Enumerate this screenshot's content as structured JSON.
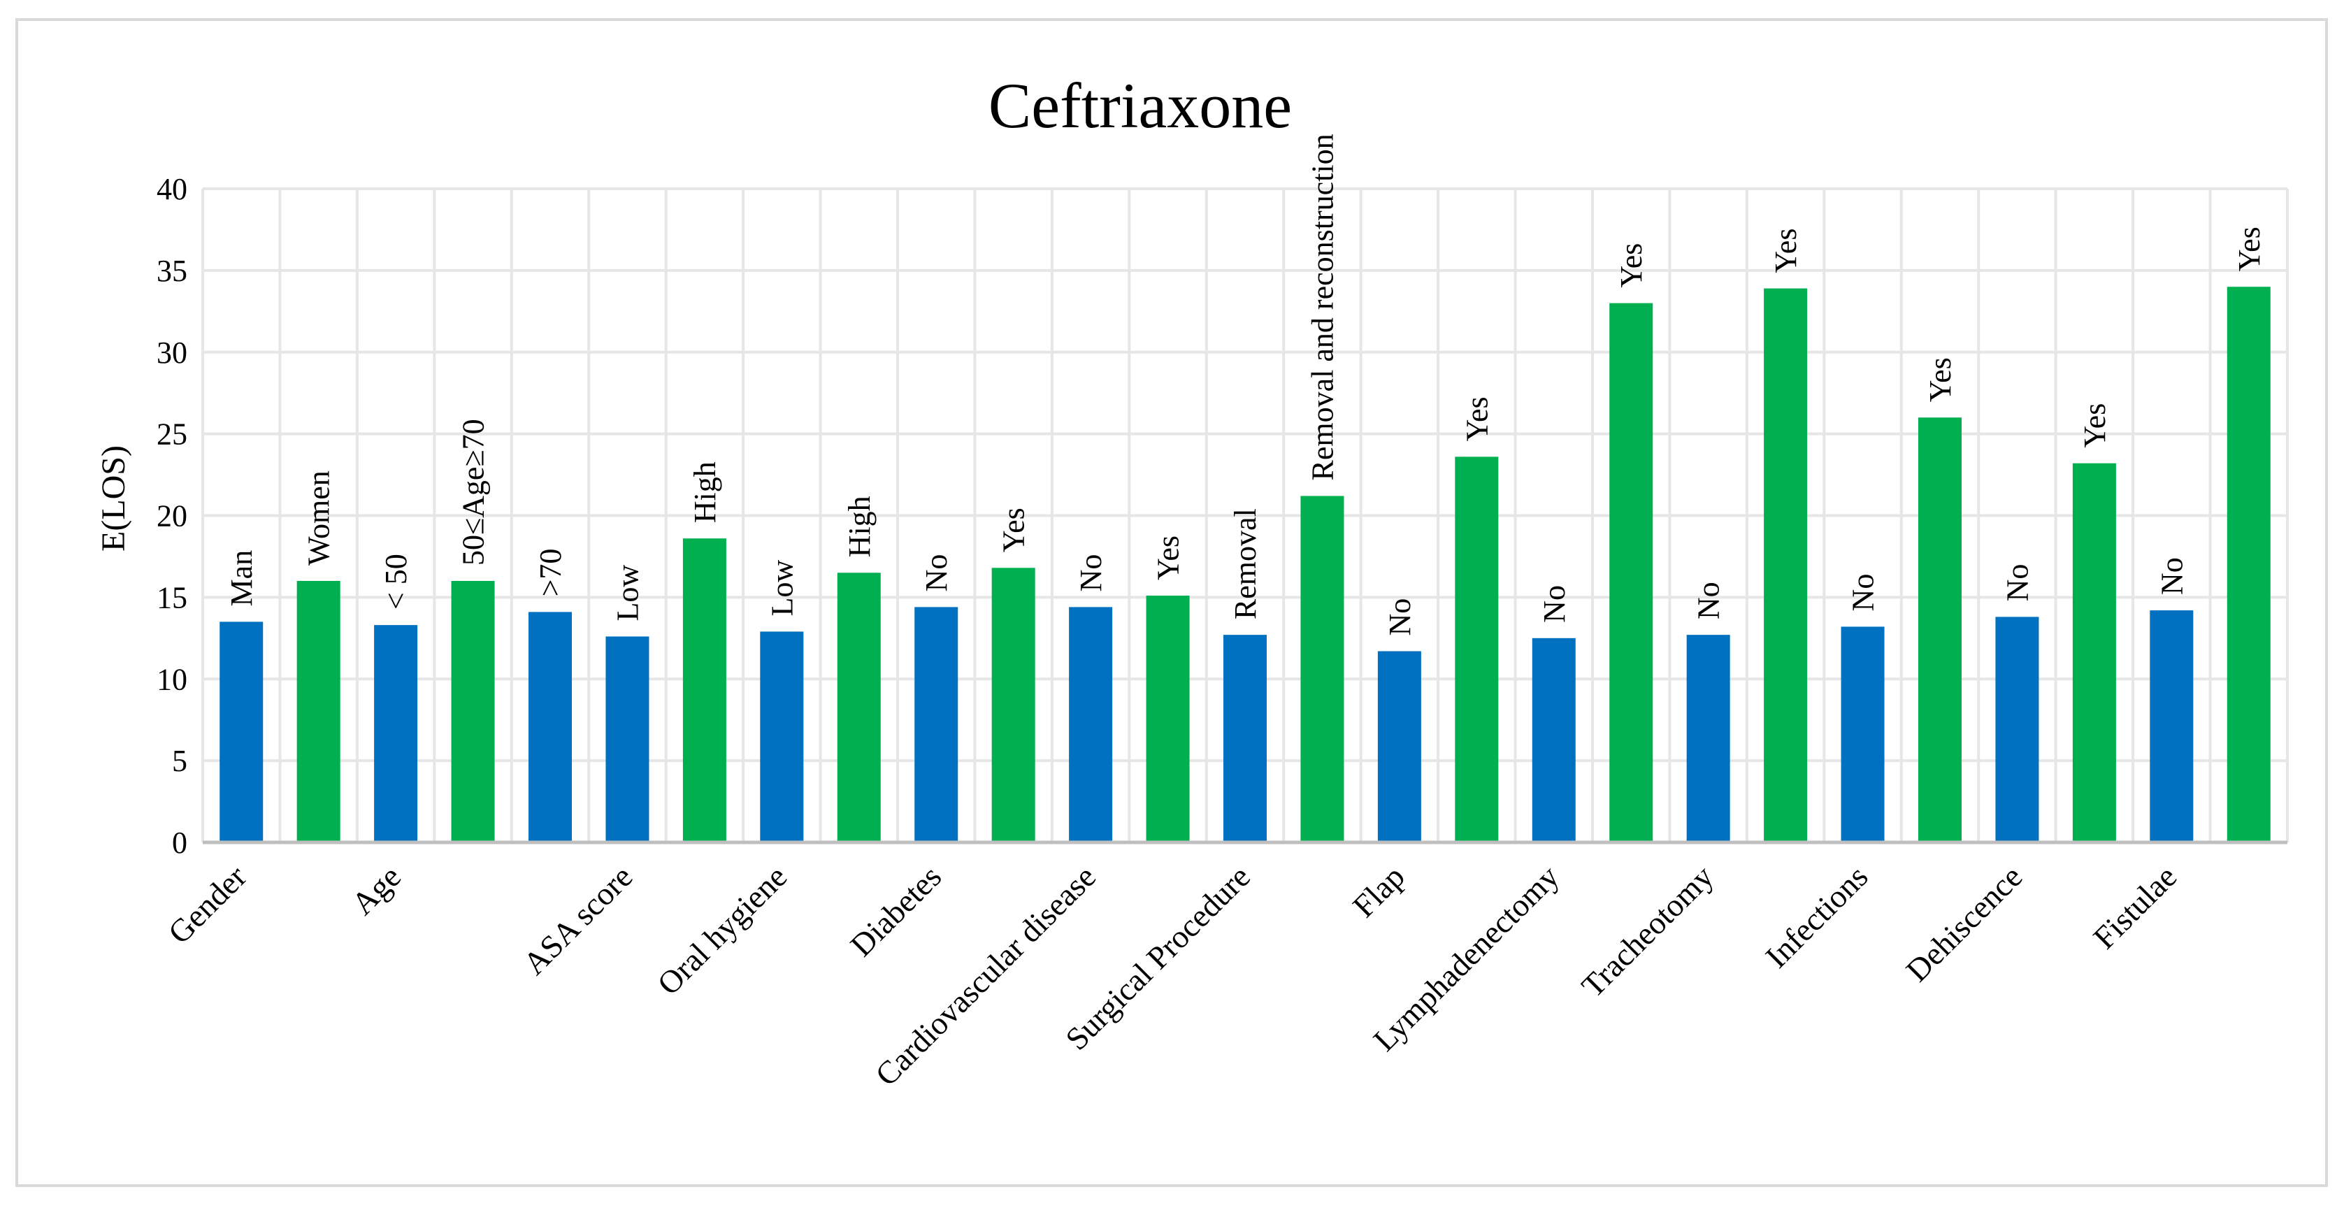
{
  "chart_data": {
    "type": "bar",
    "title": "Ceftriaxone",
    "xlabel": "",
    "ylabel": "E(LOS)",
    "ylim": [
      0,
      40
    ],
    "yticks": [
      0,
      5,
      10,
      15,
      20,
      25,
      30,
      35,
      40
    ],
    "grid": true,
    "legend": "none",
    "colors": {
      "blue": "#0070c0",
      "green": "#00b050",
      "grid": "#e6e6e6",
      "axis": "#bfbfbf",
      "text": "#000000"
    },
    "groups": [
      "Gender",
      "Age",
      "ASA score",
      "Oral hygiene",
      "Diabetes",
      "Cardiovascular  disease",
      "Surgical  Procedure",
      "Flap",
      "Lymphadenectomy",
      "Tracheotomy",
      "Infections",
      "Dehiscence",
      "Fistulae"
    ],
    "bars": [
      {
        "group": "Gender",
        "label": "Man",
        "value": 13.5,
        "color": "blue"
      },
      {
        "group": "Gender",
        "label": "Women",
        "value": 16.0,
        "color": "green"
      },
      {
        "group": "Age",
        "label": "< 50",
        "value": 13.3,
        "color": "blue"
      },
      {
        "group": "Age",
        "label": "50≤Age≥70",
        "value": 16.0,
        "color": "green"
      },
      {
        "group": "Age",
        "label": ">70",
        "value": 14.1,
        "color": "blue"
      },
      {
        "group": "ASA score",
        "label": "Low",
        "value": 12.6,
        "color": "blue"
      },
      {
        "group": "ASA score",
        "label": "High",
        "value": 18.6,
        "color": "green"
      },
      {
        "group": "Oral hygiene",
        "label": "Low",
        "value": 12.9,
        "color": "blue"
      },
      {
        "group": "Oral hygiene",
        "label": "High",
        "value": 16.5,
        "color": "green"
      },
      {
        "group": "Diabetes",
        "label": "No",
        "value": 14.4,
        "color": "blue"
      },
      {
        "group": "Diabetes",
        "label": "Yes",
        "value": 16.8,
        "color": "green"
      },
      {
        "group": "Cardiovascular  disease",
        "label": "No",
        "value": 14.4,
        "color": "blue"
      },
      {
        "group": "Cardiovascular  disease",
        "label": "Yes",
        "value": 15.1,
        "color": "green"
      },
      {
        "group": "Surgical  Procedure",
        "label": "Removal",
        "value": 12.7,
        "color": "blue"
      },
      {
        "group": "Surgical  Procedure",
        "label": "Removal and reconstruction",
        "value": 21.2,
        "color": "green"
      },
      {
        "group": "Flap",
        "label": "No",
        "value": 11.7,
        "color": "blue"
      },
      {
        "group": "Flap",
        "label": "Yes",
        "value": 23.6,
        "color": "green"
      },
      {
        "group": "Lymphadenectomy",
        "label": "No",
        "value": 12.5,
        "color": "blue"
      },
      {
        "group": "Lymphadenectomy",
        "label": "Yes",
        "value": 33.0,
        "color": "green"
      },
      {
        "group": "Tracheotomy",
        "label": "No",
        "value": 12.7,
        "color": "blue"
      },
      {
        "group": "Tracheotomy",
        "label": "Yes",
        "value": 33.9,
        "color": "green"
      },
      {
        "group": "Infections",
        "label": "No",
        "value": 13.2,
        "color": "blue"
      },
      {
        "group": "Infections",
        "label": "Yes",
        "value": 26.0,
        "color": "green"
      },
      {
        "group": "Dehiscence",
        "label": "No",
        "value": 13.8,
        "color": "blue"
      },
      {
        "group": "Dehiscence",
        "label": "Yes",
        "value": 23.2,
        "color": "green"
      },
      {
        "group": "Fistulae",
        "label": "No",
        "value": 14.2,
        "color": "blue"
      },
      {
        "group": "Fistulae",
        "label": "Yes",
        "value": 34.0,
        "color": "green"
      }
    ]
  }
}
